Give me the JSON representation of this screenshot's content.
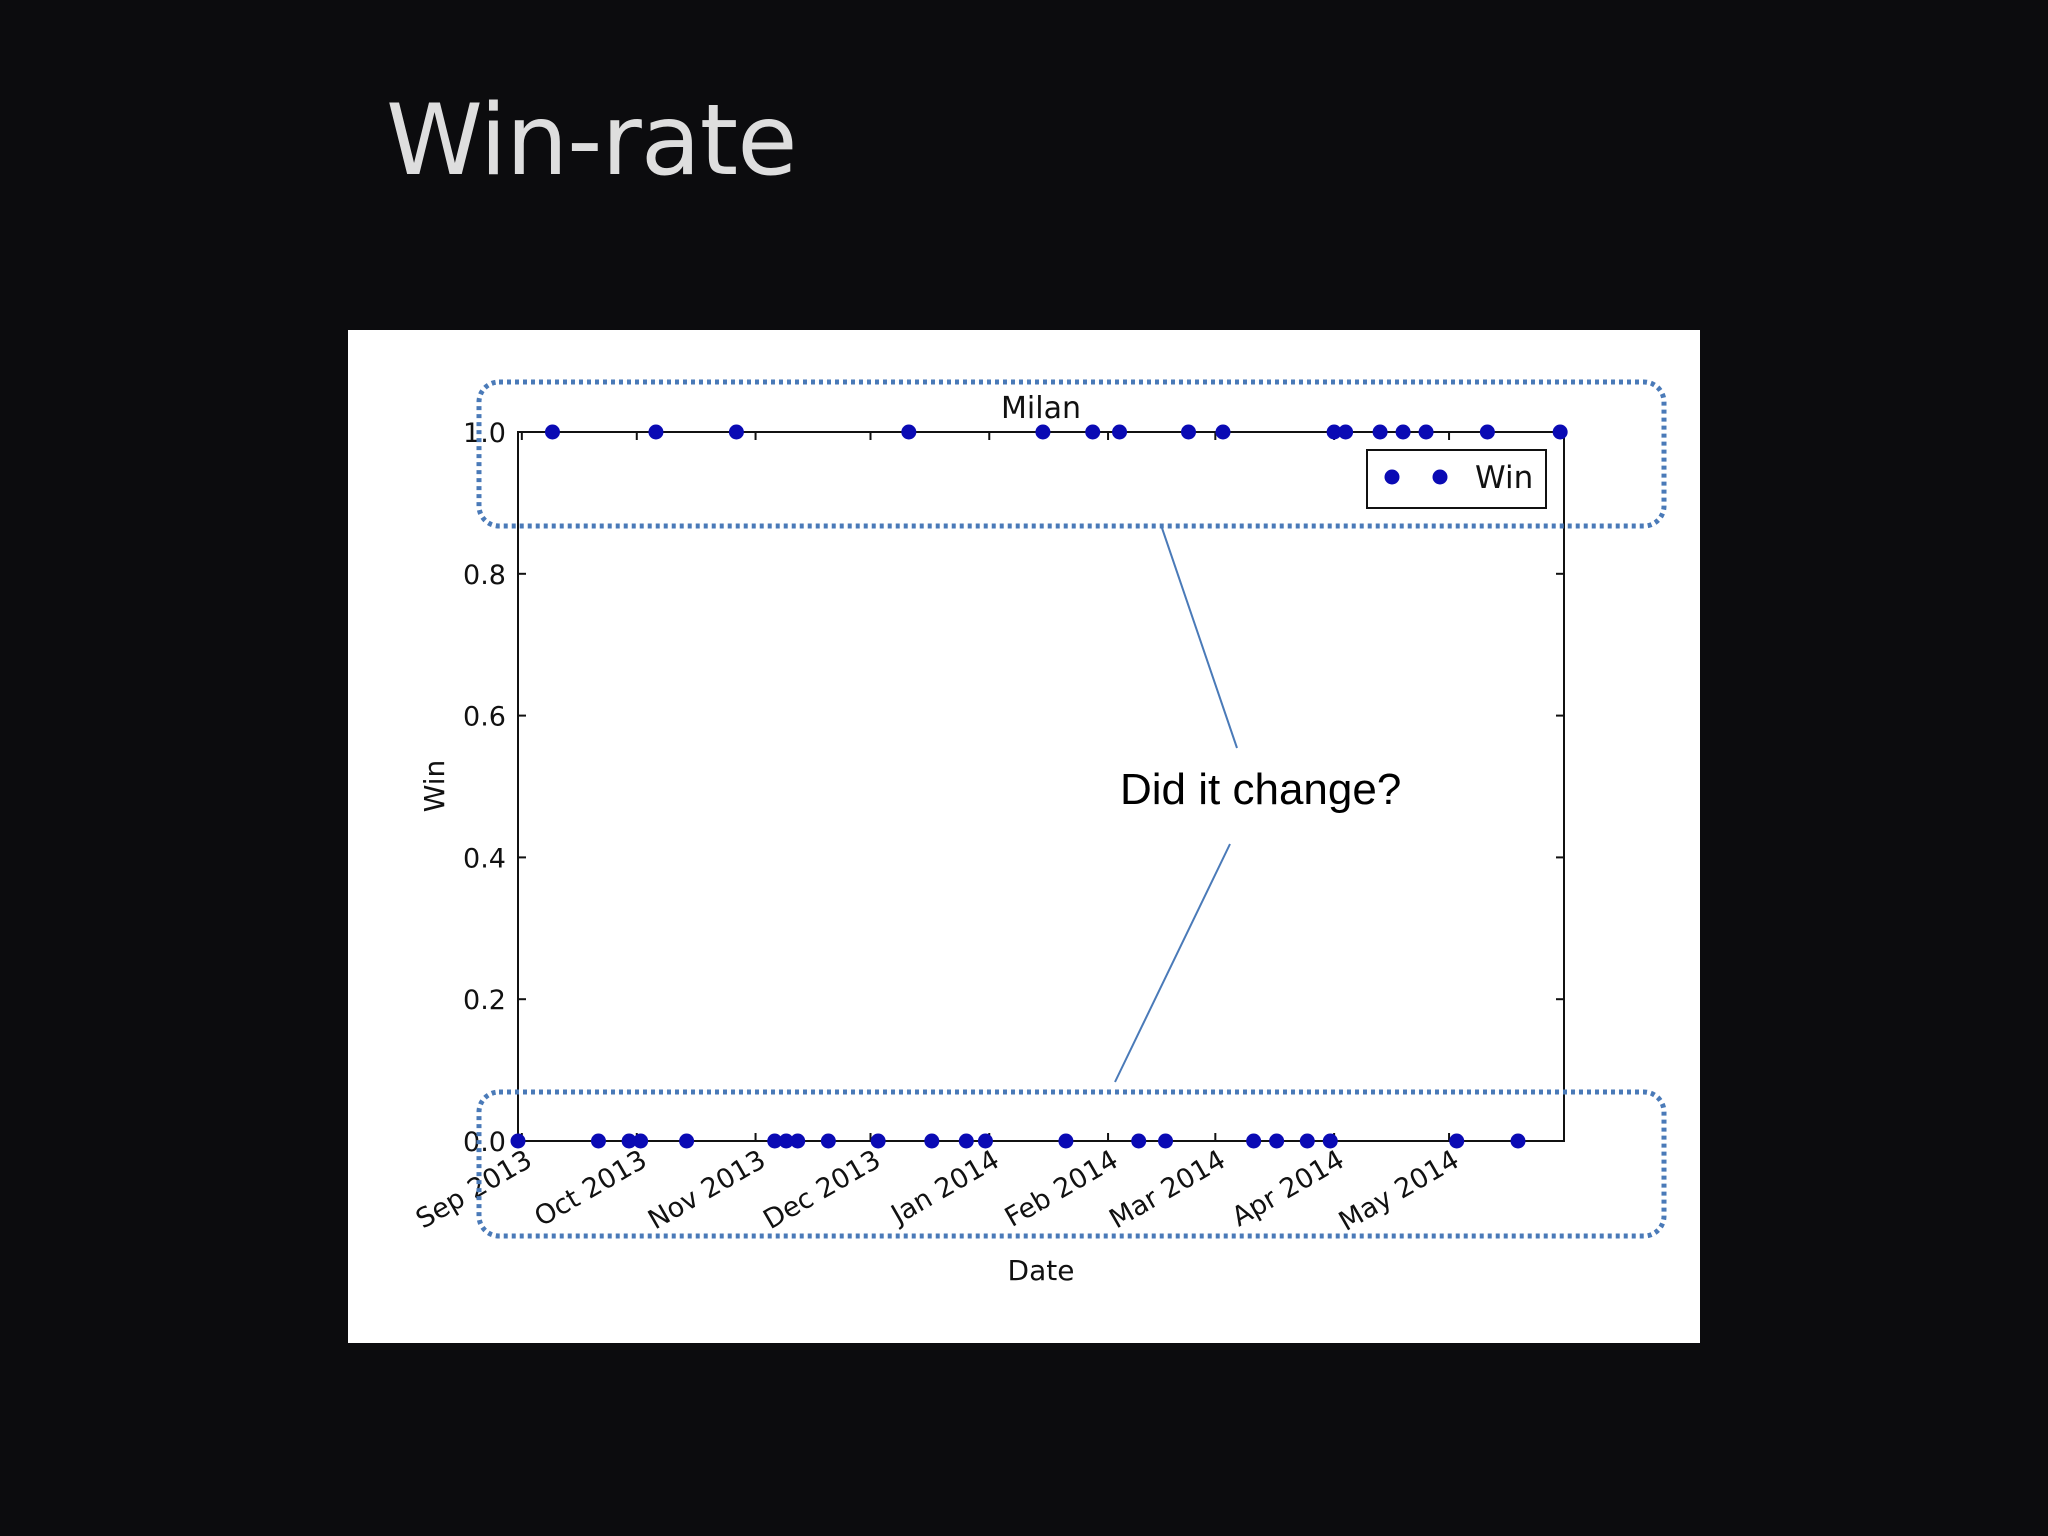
{
  "slide": {
    "title": "Win-rate",
    "background": "#0c0c0e"
  },
  "annotation": {
    "text": "Did it change?",
    "highlight_color": "#4a7ab8"
  },
  "chart_data": {
    "type": "scatter",
    "title": "Milan",
    "xlabel": "Date",
    "ylabel": "Win",
    "ylim": [
      0.0,
      1.0
    ],
    "xlim": [
      "2013-08-31",
      "2014-05-31"
    ],
    "yticks": [
      0.0,
      0.2,
      0.4,
      0.6,
      0.8,
      1.0
    ],
    "ytick_labels": [
      "0.0",
      "0.2",
      "0.4",
      "0.6",
      "0.8",
      "1.0"
    ],
    "xticks": [
      "2013-09-01",
      "2013-10-01",
      "2013-11-01",
      "2013-12-01",
      "2014-01-01",
      "2014-02-01",
      "2014-03-01",
      "2014-04-01",
      "2014-05-01"
    ],
    "xtick_labels": [
      "Sep 2013",
      "Oct 2013",
      "Nov 2013",
      "Dec 2013",
      "Jan 2014",
      "Feb 2014",
      "Mar 2014",
      "Apr 2014",
      "May 2014"
    ],
    "legend": {
      "placement": "top-right",
      "entries": [
        "Win"
      ]
    },
    "grid": false,
    "series": [
      {
        "name": "Win",
        "color": "#0a0ab4",
        "marker": "circle",
        "points": [
          {
            "x": "2013-08-31",
            "y": 0
          },
          {
            "x": "2013-09-09",
            "y": 1
          },
          {
            "x": "2013-09-21",
            "y": 0
          },
          {
            "x": "2013-09-29",
            "y": 0
          },
          {
            "x": "2013-10-02",
            "y": 0
          },
          {
            "x": "2013-10-06",
            "y": 1
          },
          {
            "x": "2013-10-14",
            "y": 0
          },
          {
            "x": "2013-10-27",
            "y": 1
          },
          {
            "x": "2013-11-06",
            "y": 0
          },
          {
            "x": "2013-11-09",
            "y": 0
          },
          {
            "x": "2013-11-12",
            "y": 0
          },
          {
            "x": "2013-11-20",
            "y": 0
          },
          {
            "x": "2013-12-03",
            "y": 0
          },
          {
            "x": "2013-12-11",
            "y": 1
          },
          {
            "x": "2013-12-17",
            "y": 0
          },
          {
            "x": "2013-12-26",
            "y": 0
          },
          {
            "x": "2013-12-31",
            "y": 0
          },
          {
            "x": "2014-01-15",
            "y": 1
          },
          {
            "x": "2014-01-21",
            "y": 0
          },
          {
            "x": "2014-01-28",
            "y": 1
          },
          {
            "x": "2014-02-04",
            "y": 1
          },
          {
            "x": "2014-02-09",
            "y": 0
          },
          {
            "x": "2014-02-16",
            "y": 0
          },
          {
            "x": "2014-02-22",
            "y": 1
          },
          {
            "x": "2014-03-03",
            "y": 1
          },
          {
            "x": "2014-03-11",
            "y": 0
          },
          {
            "x": "2014-03-17",
            "y": 0
          },
          {
            "x": "2014-03-25",
            "y": 0
          },
          {
            "x": "2014-03-31",
            "y": 0
          },
          {
            "x": "2014-04-01",
            "y": 1
          },
          {
            "x": "2014-04-04",
            "y": 1
          },
          {
            "x": "2014-04-13",
            "y": 1
          },
          {
            "x": "2014-04-19",
            "y": 1
          },
          {
            "x": "2014-04-25",
            "y": 1
          },
          {
            "x": "2014-05-03",
            "y": 0
          },
          {
            "x": "2014-05-11",
            "y": 1
          },
          {
            "x": "2014-05-19",
            "y": 0
          },
          {
            "x": "2014-05-30",
            "y": 1
          }
        ]
      }
    ]
  }
}
